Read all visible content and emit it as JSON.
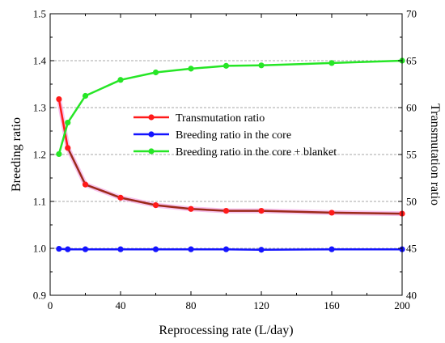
{
  "chart_data": {
    "type": "line",
    "xlabel": "Reprocessing rate (L/day)",
    "ylabel": "Breeding ratio",
    "y2label": "Transmutation ratio",
    "xlim": [
      0,
      200
    ],
    "ylim": [
      0.9,
      1.5
    ],
    "y2lim": [
      40,
      70
    ],
    "x_ticks": [
      0,
      40,
      80,
      120,
      160,
      200
    ],
    "y_ticks": [
      0.9,
      1.0,
      1.1,
      1.2,
      1.3,
      1.4,
      1.5
    ],
    "y2_ticks": [
      40,
      45,
      50,
      55,
      60,
      65,
      70
    ],
    "x_tick_labels": [
      "0",
      "40",
      "80",
      "120",
      "160",
      "200"
    ],
    "y_tick_labels": [
      "0.9",
      "1.0",
      "1.1",
      "1.2",
      "1.3",
      "1.4",
      "1.5"
    ],
    "y2_tick_labels": [
      "40",
      "45",
      "50",
      "55",
      "60",
      "65",
      "70"
    ],
    "grid": "horizontal dashed",
    "legend_position": "center-right",
    "series": [
      {
        "name": "Transmutation ratio",
        "axis": "y2",
        "color": "#ff1a1a",
        "x": [
          5,
          10,
          20,
          40,
          60,
          80,
          100,
          120,
          160,
          200
        ],
        "values": [
          60.9,
          55.7,
          51.8,
          50.4,
          49.6,
          49.2,
          49.0,
          49.0,
          48.8,
          48.7
        ]
      },
      {
        "name": "Breeding ratio in the core",
        "axis": "y",
        "color": "#1414ff",
        "x": [
          5,
          10,
          20,
          40,
          60,
          80,
          100,
          120,
          160,
          200
        ],
        "values": [
          0.999,
          0.998,
          0.998,
          0.998,
          0.998,
          0.998,
          0.998,
          0.997,
          0.998,
          0.998
        ]
      },
      {
        "name": "Breeding ratio in the core + blanket",
        "axis": "y",
        "color": "#26e626",
        "x": [
          5,
          10,
          20,
          40,
          60,
          80,
          100,
          120,
          160,
          200
        ],
        "values": [
          1.201,
          1.268,
          1.325,
          1.359,
          1.375,
          1.383,
          1.389,
          1.39,
          1.395,
          1.4
        ]
      }
    ]
  }
}
